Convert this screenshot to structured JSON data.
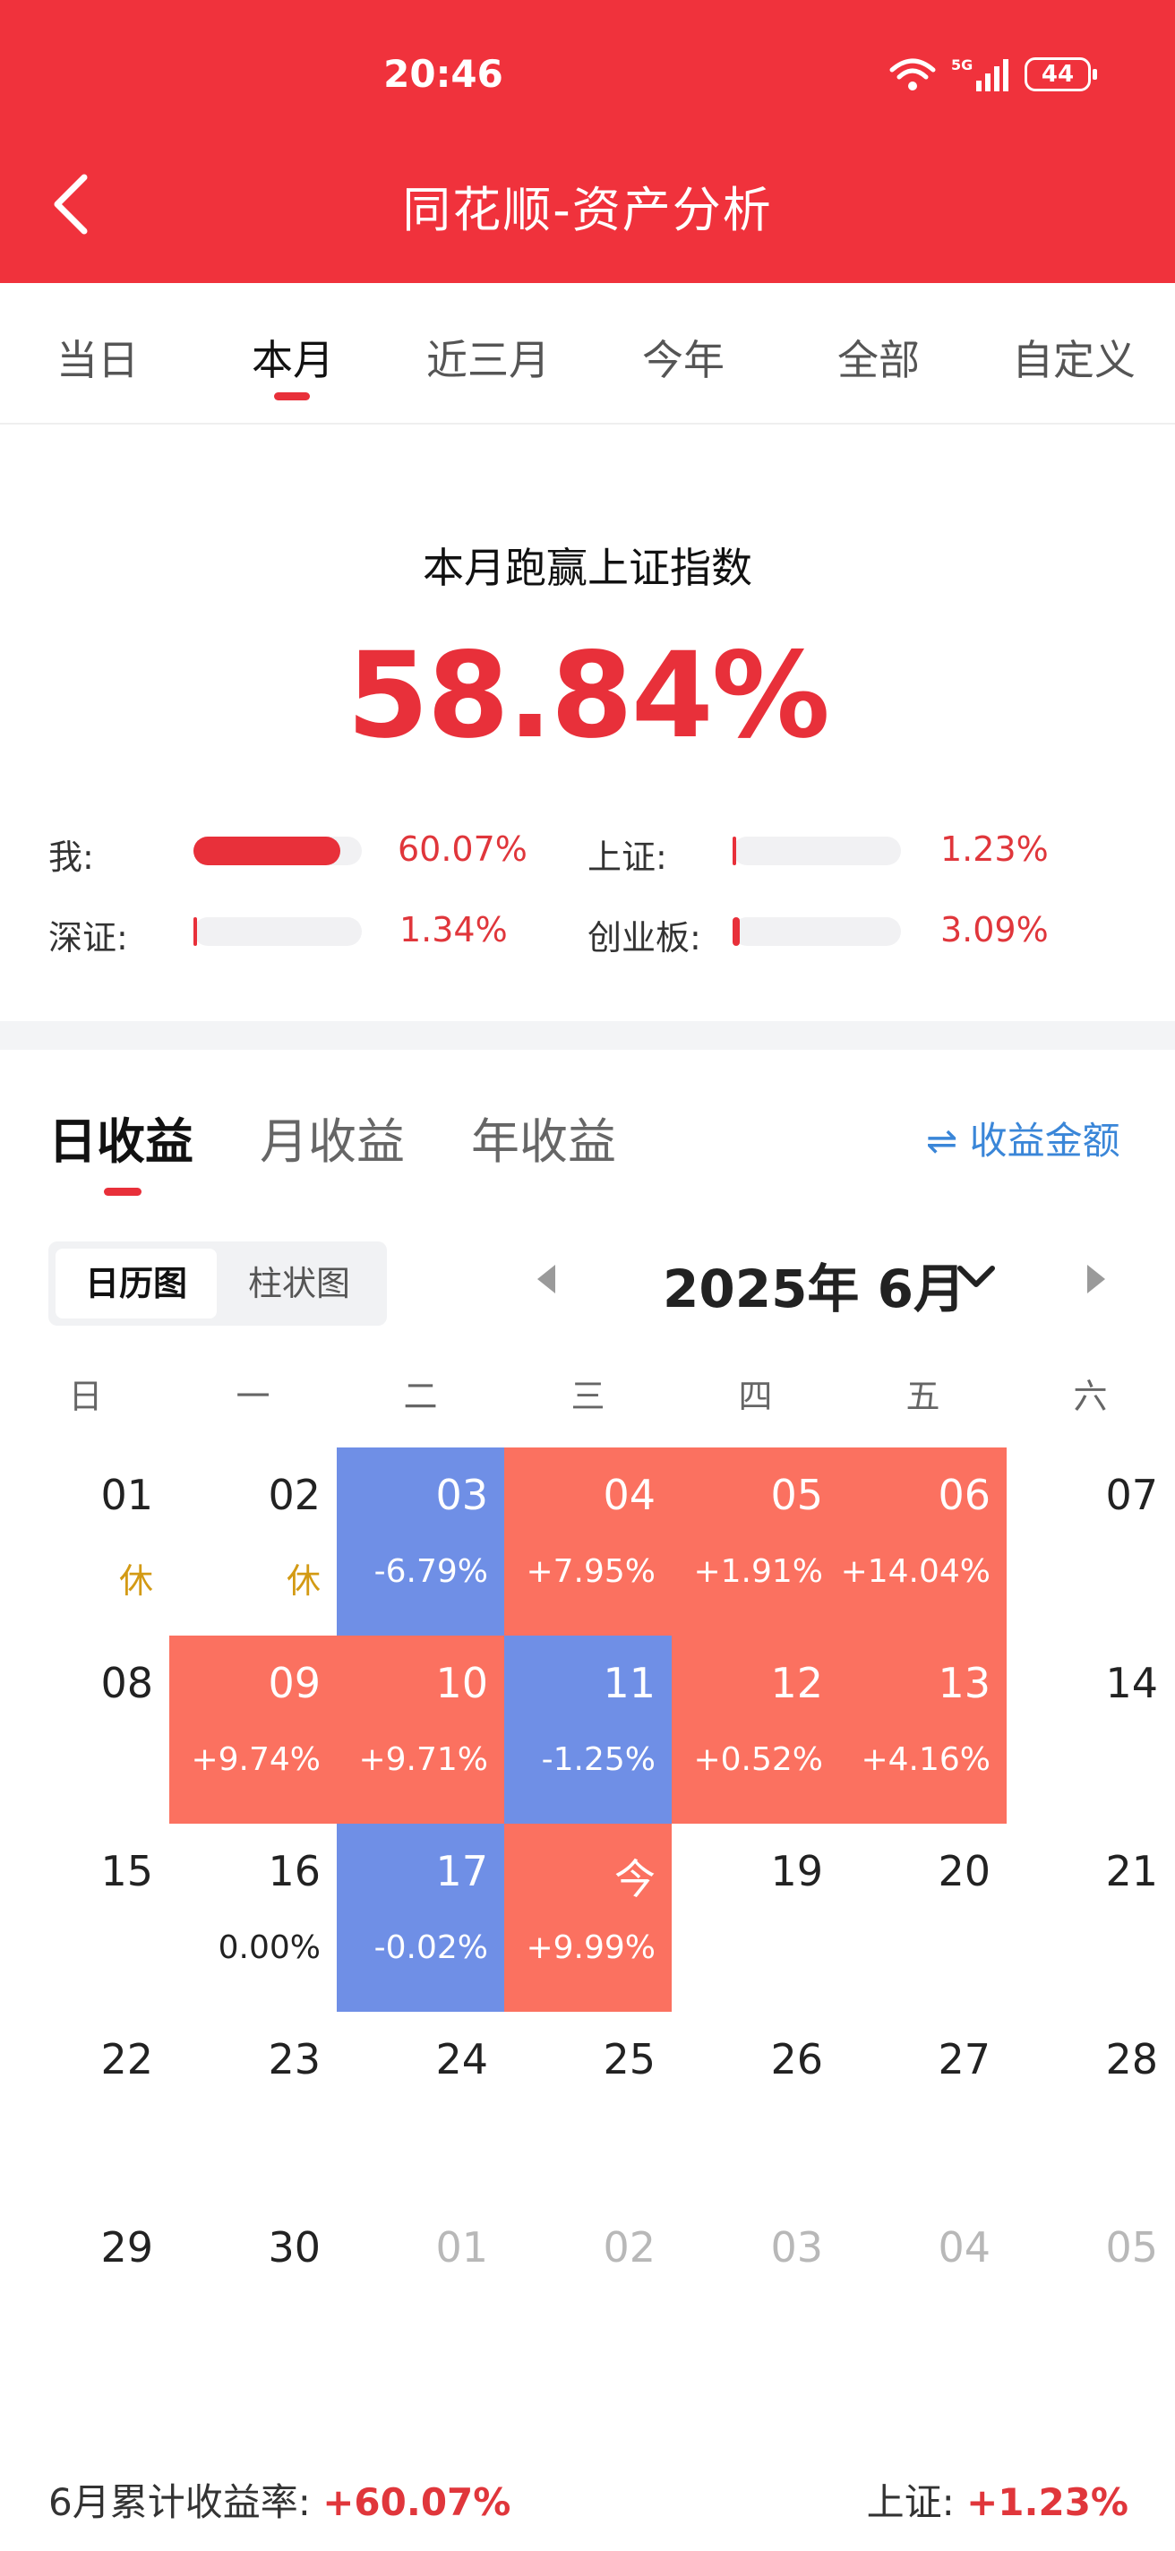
{
  "status_bar": {
    "time": "20:46",
    "network": "5G",
    "battery": "44"
  },
  "header": {
    "title": "同花顺-资产分析"
  },
  "tabs": [
    {
      "label": "当日",
      "active": false
    },
    {
      "label": "本月",
      "active": true
    },
    {
      "label": "近三月",
      "active": false
    },
    {
      "label": "今年",
      "active": false
    },
    {
      "label": "全部",
      "active": false
    },
    {
      "label": "自定义",
      "active": false
    }
  ],
  "summary": {
    "title": "本月跑赢上证指数",
    "outperform": "58.84%",
    "comparisons": [
      {
        "label": "我:",
        "value": "60.07%",
        "fill_pct": 60.07
      },
      {
        "label": "上证:",
        "value": "1.23%",
        "fill_pct": 1.23
      },
      {
        "label": "深证:",
        "value": "1.34%",
        "fill_pct": 1.34
      },
      {
        "label": "创业板:",
        "value": "3.09%",
        "fill_pct": 3.09
      }
    ],
    "colors": {
      "positive": "#e8303a",
      "accent": "#f0323c"
    }
  },
  "section_tabs": [
    {
      "label": "日收益",
      "active": true
    },
    {
      "label": "月收益",
      "active": false
    },
    {
      "label": "年收益",
      "active": false
    }
  ],
  "amount_toggle": {
    "label": "收益金额",
    "icon": "swap-arrows-icon"
  },
  "view_toggle": [
    {
      "label": "日历图",
      "active": true
    },
    {
      "label": "柱状图",
      "active": false
    }
  ],
  "month_nav": {
    "label": "2025年 6月"
  },
  "weekdays": [
    "日",
    "一",
    "二",
    "三",
    "四",
    "五",
    "六"
  ],
  "calendar": [
    [
      {
        "day": "01",
        "val": "休",
        "state": "holiday"
      },
      {
        "day": "02",
        "val": "休",
        "state": "holiday"
      },
      {
        "day": "03",
        "val": "-6.79%",
        "state": "neg"
      },
      {
        "day": "04",
        "val": "+7.95%",
        "state": "pos"
      },
      {
        "day": "05",
        "val": "+1.91%",
        "state": "pos"
      },
      {
        "day": "06",
        "val": "+14.04%",
        "state": "pos"
      },
      {
        "day": "07",
        "val": "",
        "state": "none"
      }
    ],
    [
      {
        "day": "08",
        "val": "",
        "state": "none"
      },
      {
        "day": "09",
        "val": "+9.74%",
        "state": "pos"
      },
      {
        "day": "10",
        "val": "+9.71%",
        "state": "pos"
      },
      {
        "day": "11",
        "val": "-1.25%",
        "state": "neg"
      },
      {
        "day": "12",
        "val": "+0.52%",
        "state": "pos"
      },
      {
        "day": "13",
        "val": "+4.16%",
        "state": "pos"
      },
      {
        "day": "14",
        "val": "",
        "state": "none"
      }
    ],
    [
      {
        "day": "15",
        "val": "",
        "state": "none"
      },
      {
        "day": "16",
        "val": "0.00%",
        "state": "flat"
      },
      {
        "day": "17",
        "val": "-0.02%",
        "state": "neg"
      },
      {
        "day": "今",
        "val": "+9.99%",
        "state": "pos"
      },
      {
        "day": "19",
        "val": "",
        "state": "none"
      },
      {
        "day": "20",
        "val": "",
        "state": "none"
      },
      {
        "day": "21",
        "val": "",
        "state": "none"
      }
    ],
    [
      {
        "day": "22",
        "val": "",
        "state": "none"
      },
      {
        "day": "23",
        "val": "",
        "state": "none"
      },
      {
        "day": "24",
        "val": "",
        "state": "none"
      },
      {
        "day": "25",
        "val": "",
        "state": "none"
      },
      {
        "day": "26",
        "val": "",
        "state": "none"
      },
      {
        "day": "27",
        "val": "",
        "state": "none"
      },
      {
        "day": "28",
        "val": "",
        "state": "none"
      }
    ],
    [
      {
        "day": "29",
        "val": "",
        "state": "none"
      },
      {
        "day": "30",
        "val": "",
        "state": "none"
      },
      {
        "day": "01",
        "val": "",
        "state": "other"
      },
      {
        "day": "02",
        "val": "",
        "state": "other"
      },
      {
        "day": "03",
        "val": "",
        "state": "other"
      },
      {
        "day": "04",
        "val": "",
        "state": "other"
      },
      {
        "day": "05",
        "val": "",
        "state": "other"
      }
    ]
  ],
  "footer": {
    "left_label": "6月累计收益率:",
    "left_value": "+60.07%",
    "right_label": "上证:",
    "right_value": "+1.23%"
  }
}
